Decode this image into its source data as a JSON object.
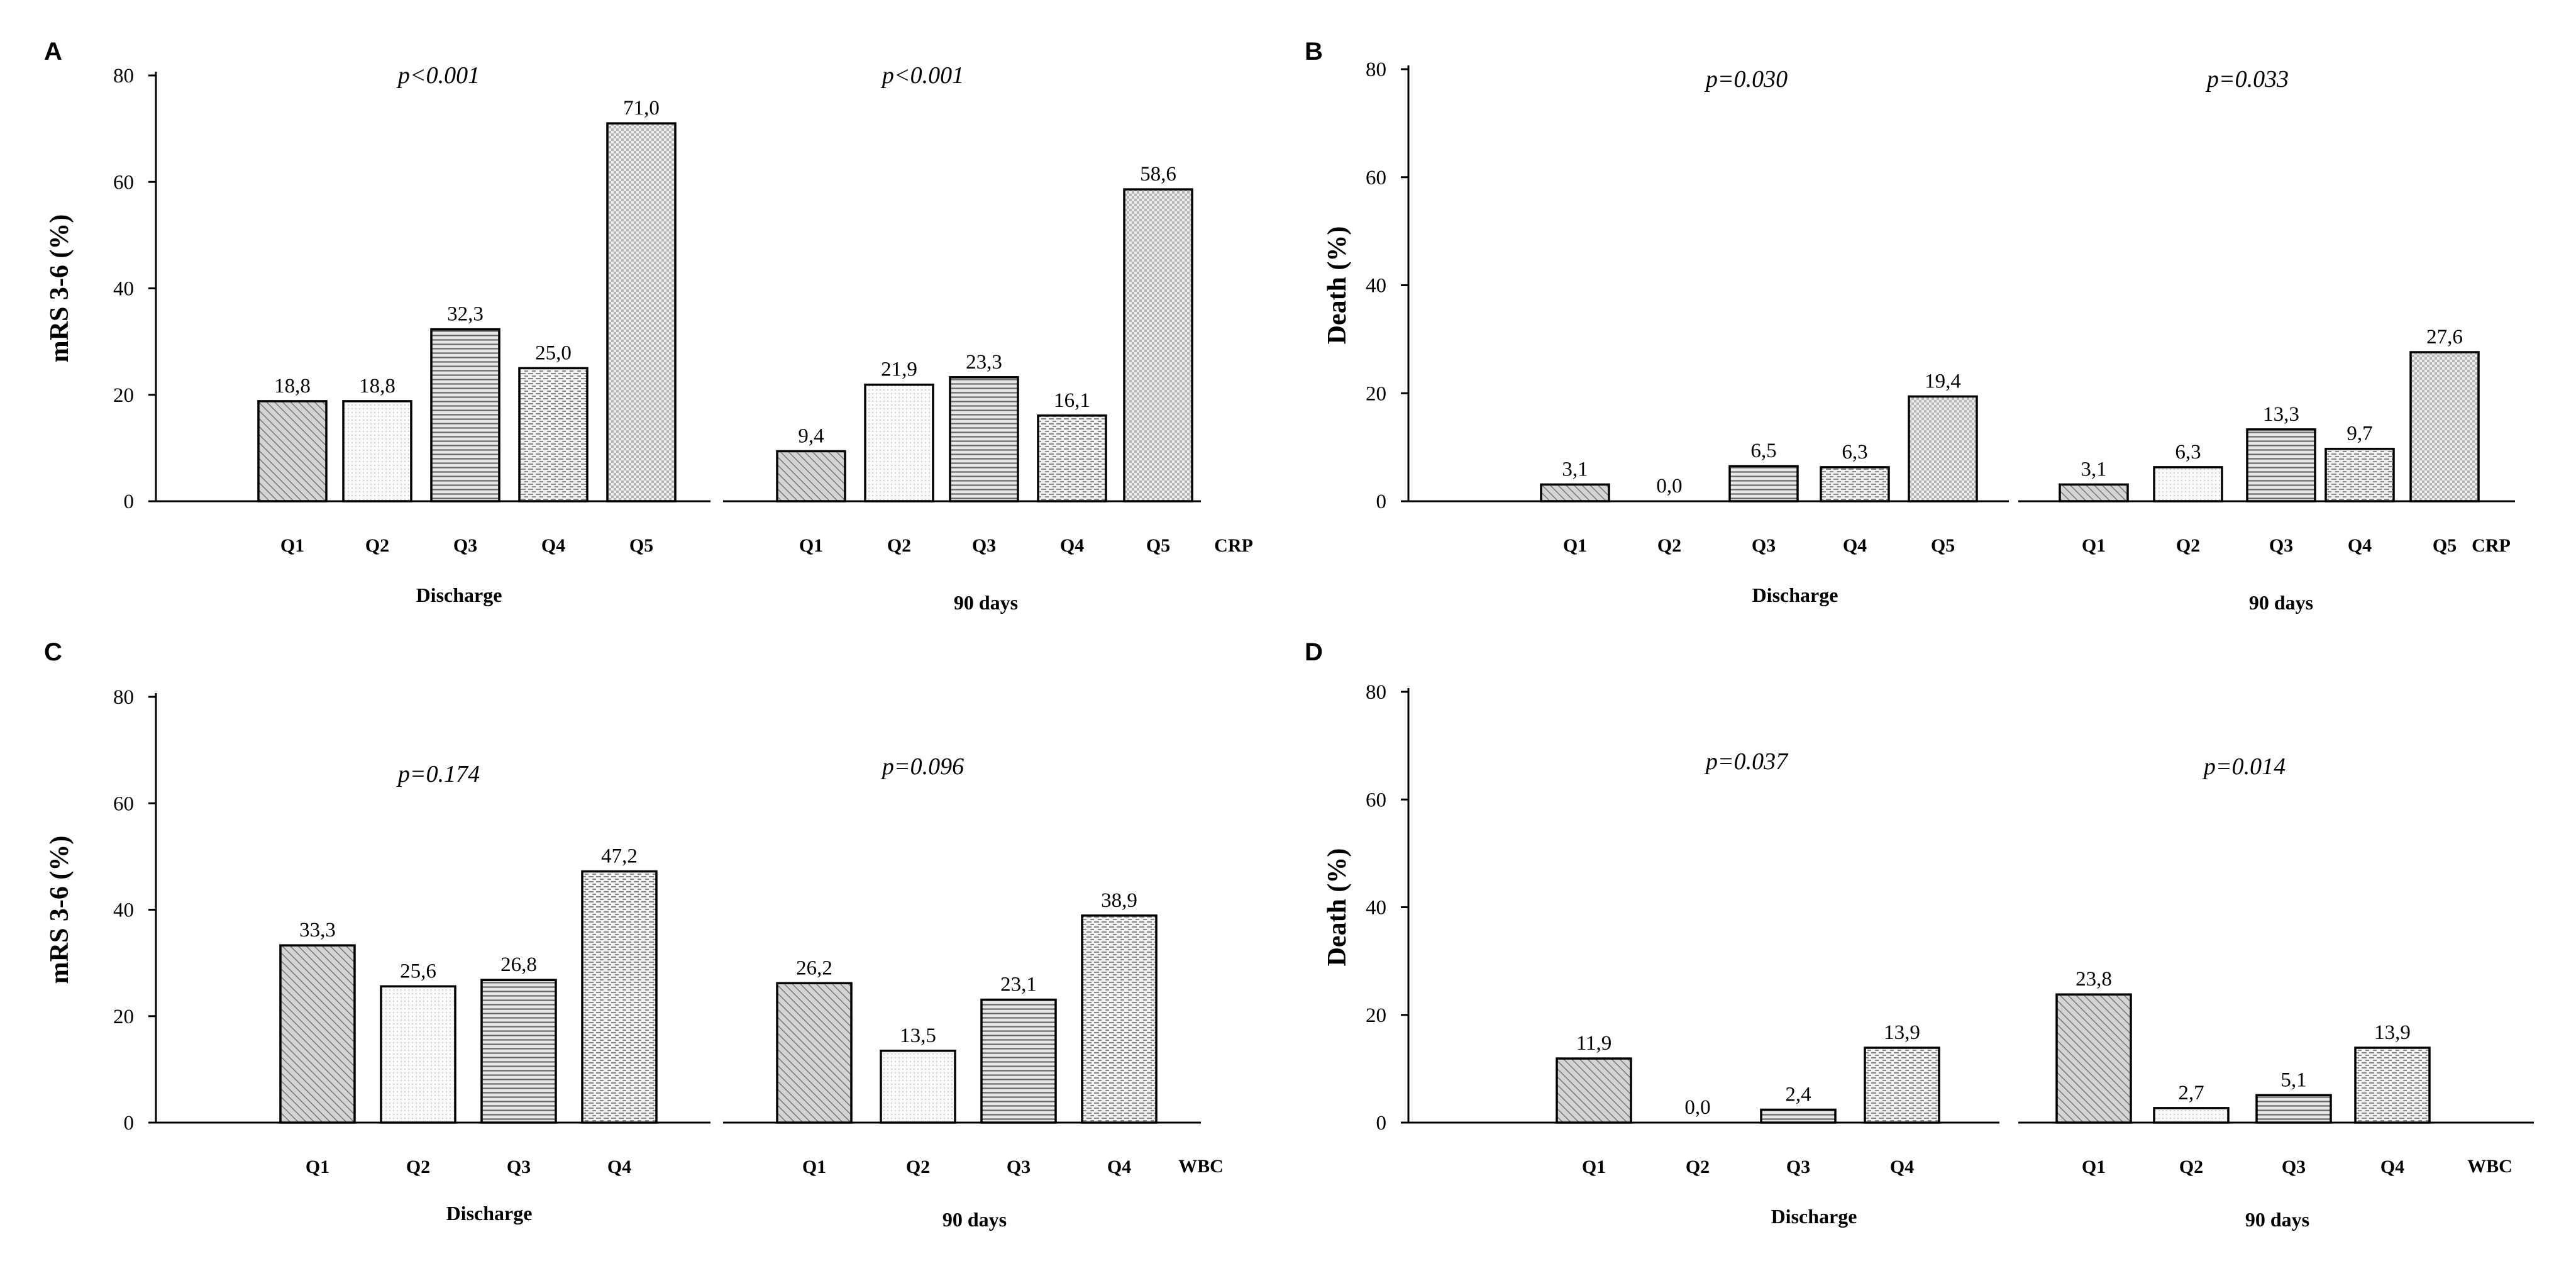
{
  "chart_data": [
    {
      "panel": "A",
      "type": "bar",
      "ylabel": "mRS 3-6 (%)",
      "ylim": [
        0,
        80
      ],
      "yticks": [
        0,
        20,
        40,
        60,
        80
      ],
      "variable": "CRP",
      "groups": [
        {
          "name": "Discharge",
          "pvalue": "p<0.001",
          "categories": [
            "Q1",
            "Q2",
            "Q3",
            "Q4",
            "Q5"
          ],
          "values": [
            18.8,
            18.8,
            32.3,
            25.0,
            71.0
          ],
          "labels": [
            "18,8",
            "18,8",
            "32,3",
            "25,0",
            "71,0"
          ]
        },
        {
          "name": "90 days",
          "pvalue": "p<0.001",
          "categories": [
            "Q1",
            "Q2",
            "Q3",
            "Q4",
            "Q5"
          ],
          "values": [
            9.4,
            21.9,
            23.3,
            16.1,
            58.6
          ],
          "labels": [
            "9,4",
            "21,9",
            "23,3",
            "16,1",
            "58,6"
          ]
        }
      ]
    },
    {
      "panel": "B",
      "type": "bar",
      "ylabel": "Death (%)",
      "ylim": [
        0,
        80
      ],
      "yticks": [
        0,
        20,
        40,
        60,
        80
      ],
      "variable": "CRP",
      "groups": [
        {
          "name": "Discharge",
          "pvalue": "p=0.030",
          "categories": [
            "Q1",
            "Q2",
            "Q3",
            "Q4",
            "Q5"
          ],
          "values": [
            3.1,
            0.0,
            6.5,
            6.3,
            19.4
          ],
          "labels": [
            "3,1",
            "0,0",
            "6,5",
            "6,3",
            "19,4"
          ]
        },
        {
          "name": "90 days",
          "pvalue": "p=0.033",
          "categories": [
            "Q1",
            "Q2",
            "Q3",
            "Q4",
            "Q5"
          ],
          "values": [
            3.1,
            6.3,
            13.3,
            9.7,
            27.6
          ],
          "labels": [
            "3,1",
            "6,3",
            "13,3",
            "9,7",
            "27,6"
          ]
        }
      ]
    },
    {
      "panel": "C",
      "type": "bar",
      "ylabel": "mRS 3-6 (%)",
      "ylim": [
        0,
        80
      ],
      "yticks": [
        0,
        20,
        40,
        60,
        80
      ],
      "variable": "WBC",
      "groups": [
        {
          "name": "Discharge",
          "pvalue": "p=0.174",
          "categories": [
            "Q1",
            "Q2",
            "Q3",
            "Q4"
          ],
          "values": [
            33.3,
            25.6,
            26.8,
            47.2
          ],
          "labels": [
            "33,3",
            "25,6",
            "26,8",
            "47,2"
          ]
        },
        {
          "name": "90 days",
          "pvalue": "p=0.096",
          "categories": [
            "Q1",
            "Q2",
            "Q3",
            "Q4"
          ],
          "values": [
            26.2,
            13.5,
            23.1,
            38.9
          ],
          "labels": [
            "26,2",
            "13,5",
            "23,1",
            "38,9"
          ]
        }
      ]
    },
    {
      "panel": "D",
      "type": "bar",
      "ylabel": "Death (%)",
      "ylim": [
        0,
        80
      ],
      "yticks": [
        0,
        20,
        40,
        60,
        80
      ],
      "variable": "WBC",
      "groups": [
        {
          "name": "Discharge",
          "pvalue": "p=0.037",
          "categories": [
            "Q1",
            "Q2",
            "Q3",
            "Q4"
          ],
          "values": [
            11.9,
            0.0,
            2.4,
            13.9
          ],
          "labels": [
            "11,9",
            "0,0",
            "2,4",
            "13,9"
          ]
        },
        {
          "name": "90 days",
          "pvalue": "p=0.014",
          "categories": [
            "Q1",
            "Q2",
            "Q3",
            "Q4"
          ],
          "values": [
            23.8,
            2.7,
            5.1,
            13.9
          ],
          "labels": [
            "23,8",
            "2,7",
            "5,1",
            "13,9"
          ]
        }
      ]
    }
  ]
}
